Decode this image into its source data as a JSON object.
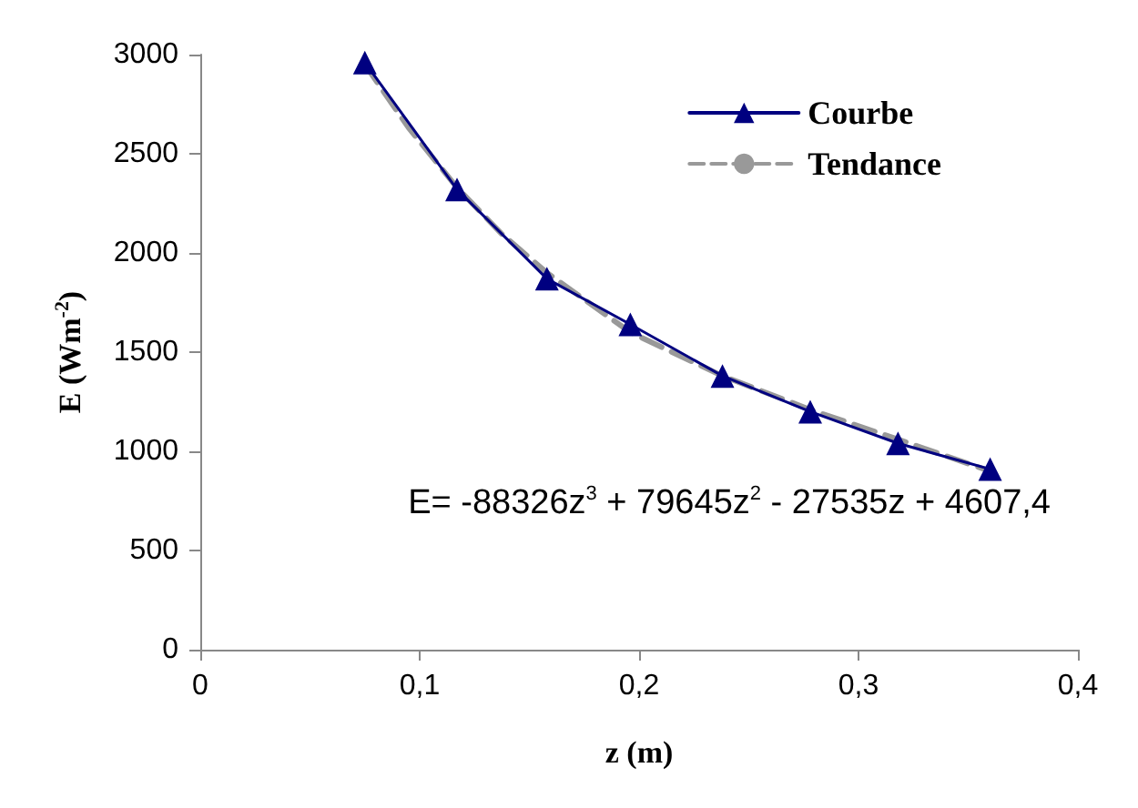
{
  "chart_data": {
    "type": "line",
    "xlabel": "z (m)",
    "ylabel": "E (Wm$^{-2}$)",
    "xlim": [
      0,
      0.4
    ],
    "xticks": [
      0,
      {
        "value": 0.1,
        "label": "0,1"
      },
      {
        "value": 0.2,
        "label": "0,2"
      },
      {
        "value": 0.3,
        "label": "0,3"
      },
      {
        "value": 0.4,
        "label": "0,4"
      }
    ],
    "ylim": [
      0,
      3000
    ],
    "yticks": [
      0,
      500,
      1000,
      1500,
      2000,
      2500,
      3000
    ],
    "grid": false,
    "legend": "top right",
    "series": [
      {
        "name": "Courbe",
        "color": "#000080",
        "marker": "triangle",
        "line_style": "solid",
        "x": [
          0.075,
          0.117,
          0.158,
          0.196,
          0.238,
          0.278,
          0.318,
          0.36
        ],
        "values": [
          2960,
          2320,
          1870,
          1640,
          1380,
          1200,
          1040,
          910
        ]
      },
      {
        "name": "Tendance",
        "type": "line",
        "color": "#999999",
        "marker": "none",
        "line_style": "dashed",
        "x": [
          0.075,
          0.095,
          0.117,
          0.137,
          0.158,
          0.196,
          0.238,
          0.278,
          0.318,
          0.36
        ],
        "values": [
          2950,
          2630,
          2330,
          2100,
          1900,
          1600,
          1380,
          1210,
          1060,
          900
        ]
      }
    ],
    "annotations": [
      "E= -88326z$^{3}$ + 79645z$^{2}$ - 27535z + 4607,4"
    ]
  }
}
